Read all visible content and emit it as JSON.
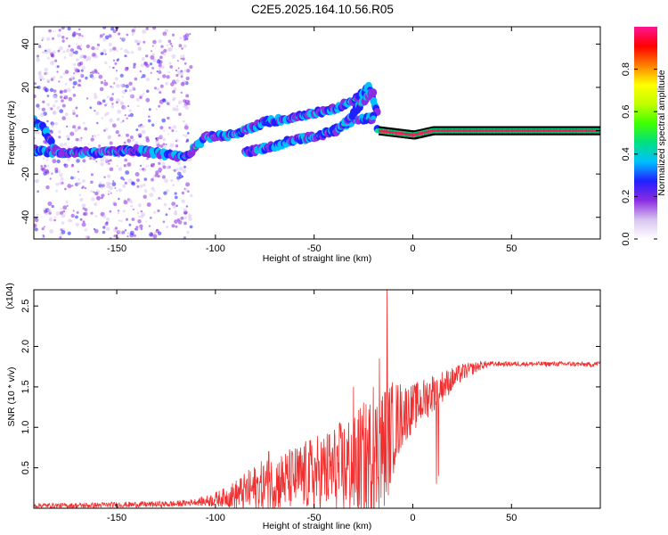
{
  "title": "C2E5.2025.164.10.56.R05",
  "colorbar": {
    "label": "Normalized spectral amplitude",
    "range": [
      0,
      1
    ],
    "ticks": [
      0.0,
      0.2,
      0.4,
      0.6,
      0.8
    ],
    "tick_labels": [
      "0.0",
      "0.2",
      "0.4",
      "0.6",
      "0.8"
    ],
    "stops": [
      "#ffffff",
      "#d8c4f0",
      "#8b2be2",
      "#2020ff",
      "#00c0ff",
      "#00e080",
      "#40ff00",
      "#c0ff00",
      "#ffff00",
      "#ff8000",
      "#ff0000",
      "#ff1493"
    ]
  },
  "chart_data": [
    {
      "type": "heatmap",
      "xlabel": "Height of straight line (km)",
      "ylabel": "Frequency (Hz)",
      "xlim": [
        -192,
        95
      ],
      "ylim": [
        -50,
        48
      ],
      "xticks": [
        -150,
        -100,
        -50,
        0,
        50
      ],
      "xtick_labels": [
        "-150",
        "-100",
        "-50",
        "0",
        "50"
      ],
      "yticks": [
        -40,
        -20,
        0,
        20,
        40
      ],
      "ytick_labels": [
        "-40",
        "-20",
        "0",
        "20",
        "40"
      ],
      "grid": false,
      "tracks": [
        {
          "x": [
            -192,
            -180,
            -160,
            -140,
            -125,
            -115,
            -105,
            -90,
            -75,
            -60,
            -50,
            -40,
            -30,
            -22,
            -18
          ],
          "y": [
            -9,
            -10,
            -10,
            -9,
            -11,
            -12,
            -3,
            -2,
            4,
            6,
            8,
            10,
            14,
            20,
            8
          ]
        },
        {
          "x": [
            -192,
            -188,
            -185,
            -182,
            -178
          ],
          "y": [
            5,
            2,
            -2,
            -8,
            -11
          ]
        },
        {
          "x": [
            -85,
            -70,
            -60,
            -50,
            -40,
            -30,
            -20
          ],
          "y": [
            -10,
            -7,
            -4,
            -3,
            0,
            5,
            6
          ]
        },
        {
          "x": [
            -40,
            -35,
            -30,
            -25,
            -20
          ],
          "y": [
            -1,
            3,
            8,
            14,
            18
          ]
        },
        {
          "x": [
            -18,
            0,
            10,
            20,
            30,
            50,
            70,
            95
          ],
          "y": [
            0,
            -2,
            0,
            0,
            0,
            0,
            0,
            0
          ]
        }
      ]
    },
    {
      "type": "line",
      "xlabel": "Height of straight line (km)",
      "ylabel": "SNR (10 * v/v)",
      "y_multiplier": "(x10^4)",
      "xlim": [
        -192,
        95
      ],
      "ylim": [
        0,
        2.7
      ],
      "xticks": [
        -150,
        -100,
        -50,
        0,
        50
      ],
      "xtick_labels": [
        "-150",
        "-100",
        "-50",
        "0",
        "50"
      ],
      "yticks": [
        0.5,
        1.0,
        1.5,
        2.0,
        2.5
      ],
      "ytick_labels": [
        "0.5",
        "1.0",
        "1.5",
        "2.0",
        "2.5"
      ],
      "grid": false,
      "series": [
        {
          "color": "#f03030",
          "envelope": {
            "x": [
              -192,
              -170,
              -150,
              -120,
              -105,
              -95,
              -85,
              -75,
              -65,
              -55,
              -45,
              -35,
              -25,
              -20,
              -15,
              -12,
              -10,
              -5,
              0,
              5,
              10,
              15,
              20,
              25,
              30,
              35,
              40,
              50,
              60,
              70,
              80,
              90,
              95
            ],
            "y": [
              0.04,
              0.04,
              0.05,
              0.06,
              0.1,
              0.16,
              0.25,
              0.35,
              0.42,
              0.48,
              0.55,
              0.62,
              0.72,
              0.8,
              0.9,
              1.0,
              1.12,
              1.25,
              1.3,
              1.38,
              1.48,
              1.55,
              1.62,
              1.7,
              1.74,
              1.78,
              1.79,
              1.79,
              1.79,
              1.79,
              1.79,
              1.78,
              1.8
            ]
          },
          "noise_amplitude": {
            "x": [
              -192,
              -110,
              -95,
              -80,
              -60,
              -40,
              -25,
              -15,
              -10,
              -5,
              0,
              10,
              20,
              30,
              40,
              95
            ],
            "y": [
              0.03,
              0.04,
              0.12,
              0.3,
              0.4,
              0.55,
              0.75,
              0.8,
              0.6,
              0.4,
              0.3,
              0.25,
              0.15,
              0.08,
              0.03,
              0.03
            ]
          },
          "peaks": [
            {
              "x": -13,
              "y": 2.7
            },
            {
              "x": -17,
              "y": 1.85
            },
            {
              "x": -30,
              "y": 1.5
            },
            {
              "x": -20,
              "y": 1.5
            },
            {
              "x": -73,
              "y": 0.7
            },
            {
              "x": -48,
              "y": 0.6
            },
            {
              "x": 12,
              "y": 0.3
            },
            {
              "x": 13,
              "y": 0.4
            }
          ]
        }
      ]
    }
  ]
}
